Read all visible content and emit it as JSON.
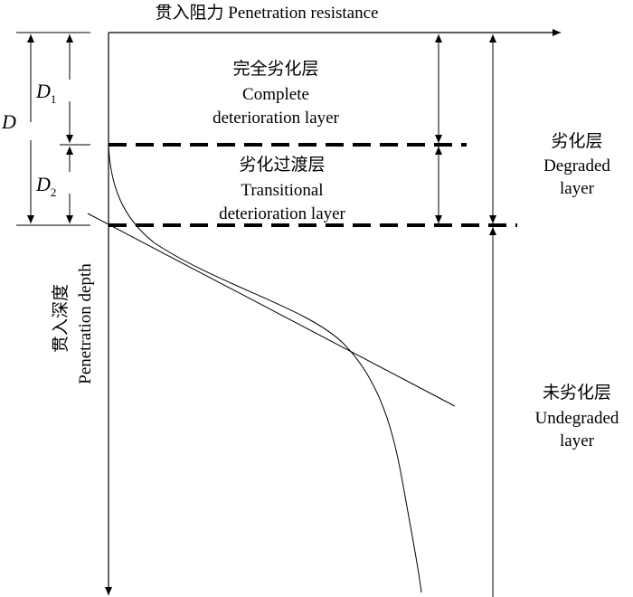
{
  "axes": {
    "x_label": "贯入阻力 Penetration resistance",
    "y_label_cn": "贯入深度",
    "y_label_en": "Penetration depth"
  },
  "dimensions": {
    "D": "D",
    "D1_main": "D",
    "D1_sub": "1",
    "D2_main": "D",
    "D2_sub": "2"
  },
  "layers": {
    "complete": {
      "cn": "完全劣化层",
      "en1": "Complete",
      "en2": "deterioration layer"
    },
    "transitional": {
      "cn": "劣化过渡层",
      "en1": "Transitional",
      "en2": "deterioration layer"
    },
    "degraded": {
      "cn": "劣化层",
      "en1": "Degraded",
      "en2": "layer"
    },
    "undegraded": {
      "cn": "未劣化层",
      "en1": "Undegraded",
      "en2": "layer"
    }
  },
  "colors": {
    "line": "#000000",
    "background": "#ffffff"
  }
}
